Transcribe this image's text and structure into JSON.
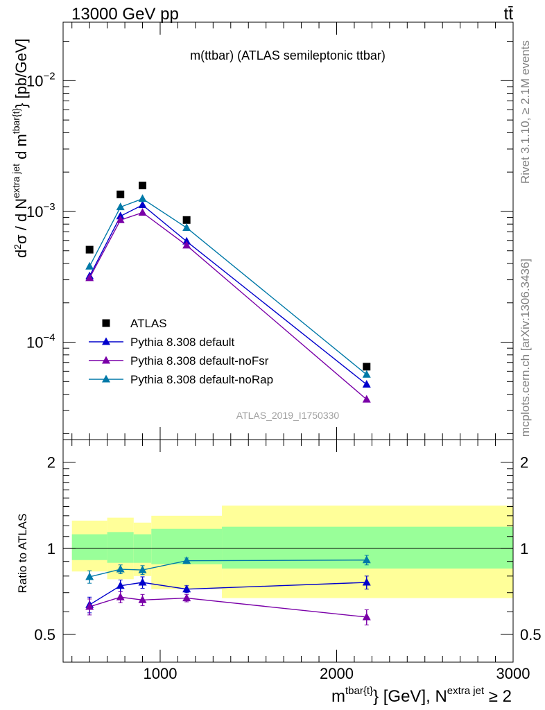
{
  "header": {
    "left": "13000 GeV pp",
    "right": "tt̄"
  },
  "side_labels": {
    "rivet": "Rivet 3.1.10, ≥ 2.1M events",
    "source": "mcplots.cern.ch [arXiv:1306.3436]"
  },
  "chart_data": [
    {
      "type": "line",
      "title": "m(ttbar) (ATLAS semileptonic ttbar)",
      "watermark": "ATLAS_2019_I1750330",
      "ylabel": "d²σ / d N^{extra jet} d m^{tbar{t}} [pb/GeV]",
      "ylabel_parts": {
        "main": "d",
        "sup1": "2",
        "sigma": "σ / d N",
        "sup2": "extra jet",
        "mid": " d m",
        "sup3": "tbar{t}",
        "tail": "} [pb/GeV]"
      },
      "yscale": "log",
      "ylim": [
        1.8e-05,
        0.028
      ],
      "xlim": [
        450,
        3000
      ],
      "y_tick_labels": [
        {
          "value": 0.01,
          "base": "10",
          "exp": "−2"
        },
        {
          "value": 0.001,
          "base": "10",
          "exp": "−3"
        },
        {
          "value": 0.0001,
          "base": "10",
          "exp": "−4"
        }
      ],
      "legend_position": "lower-left",
      "x": [
        600,
        775,
        900,
        1150,
        2170
      ],
      "series": [
        {
          "name": "ATLAS",
          "color": "#000000",
          "marker": "square",
          "line": false,
          "values": [
            0.00051,
            0.00135,
            0.00158,
            0.00086,
            6.5e-05
          ]
        },
        {
          "name": "Pythia 8.308 default",
          "color": "#0000cc",
          "marker": "triangle",
          "line": true,
          "values": [
            0.00032,
            0.00092,
            0.00112,
            0.00059,
            4.75e-05
          ]
        },
        {
          "name": "Pythia 8.308 default-noFsr",
          "color": "#7a00a8",
          "marker": "triangle",
          "line": true,
          "values": [
            0.00031,
            0.00086,
            0.00098,
            0.00055,
            3.65e-05
          ]
        },
        {
          "name": "Pythia 8.308 default-noRap",
          "color": "#0079a8",
          "marker": "triangle",
          "line": true,
          "values": [
            0.00038,
            0.00108,
            0.00125,
            0.00075,
            5.65e-05
          ]
        }
      ]
    },
    {
      "type": "line",
      "ylabel": "Ratio to ATLAS",
      "xlabel": "m^{tbar{t}} [GeV], N^{extra jet} ≥ 2",
      "xlabel_parts": {
        "m": "m",
        "sup1": "tbar{t}",
        "mid": "} [GeV], N",
        "sup2": "extra jet",
        "tail": " ≥ 2"
      },
      "yscale": "log",
      "ylim": [
        0.4,
        2.4
      ],
      "xlim": [
        450,
        3000
      ],
      "x_tick_labels": [
        "1000",
        "2000",
        "3000"
      ],
      "x_ticks": [
        1000,
        2000,
        3000
      ],
      "y_tick_labels": [
        "2",
        "1",
        "0.5"
      ],
      "y_ticks": [
        2,
        1,
        0.5
      ],
      "reference_line": 1,
      "uncertainty_bins": [
        {
          "x0": 500,
          "x1": 700,
          "inner": [
            0.91,
            1.12
          ],
          "outer": [
            0.83,
            1.25
          ]
        },
        {
          "x0": 700,
          "x1": 850,
          "inner": [
            0.89,
            1.14
          ],
          "outer": [
            0.78,
            1.28
          ]
        },
        {
          "x0": 850,
          "x1": 950,
          "inner": [
            0.89,
            1.12
          ],
          "outer": [
            0.8,
            1.23
          ]
        },
        {
          "x0": 950,
          "x1": 1350,
          "inner": [
            0.88,
            1.17
          ],
          "outer": [
            0.72,
            1.3
          ]
        },
        {
          "x0": 1350,
          "x1": 3000,
          "inner": [
            0.85,
            1.19
          ],
          "outer": [
            0.67,
            1.41
          ]
        }
      ],
      "band_colors": {
        "inner": "#99ff99",
        "outer": "#ffff99"
      },
      "x": [
        600,
        775,
        900,
        1150,
        2170
      ],
      "series": [
        {
          "name": "Pythia 8.308 default",
          "color": "#0000cc",
          "values": [
            0.635,
            0.74,
            0.76,
            0.72,
            0.76
          ],
          "errors": [
            0.04,
            0.035,
            0.035,
            0.02,
            0.04
          ]
        },
        {
          "name": "Pythia 8.308 default-noFsr",
          "color": "#7a00a8",
          "values": [
            0.625,
            0.675,
            0.66,
            0.67,
            0.575
          ],
          "errors": [
            0.04,
            0.03,
            0.03,
            0.02,
            0.035
          ]
        },
        {
          "name": "Pythia 8.308 default-noRap",
          "color": "#0079a8",
          "values": [
            0.795,
            0.845,
            0.84,
            0.905,
            0.91
          ],
          "errors": [
            0.04,
            0.03,
            0.03,
            0.02,
            0.035
          ]
        }
      ]
    }
  ]
}
